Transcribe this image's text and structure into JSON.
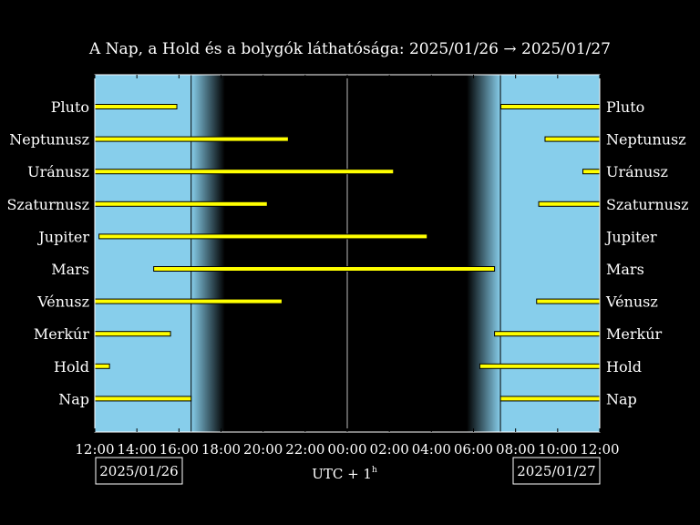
{
  "chart_data": {
    "type": "bar",
    "title": "A Nap, a Hold és a bolygók láthatósága: 2025/01/26 → 2025/01/27",
    "xlabel": "UTC + 1",
    "xlabel_sup": "h",
    "date_left": "2025/01/26",
    "date_right": "2025/01/27",
    "x_range_hours": [
      12,
      36
    ],
    "x_ticks": [
      {
        "h": 12,
        "label": "12:00"
      },
      {
        "h": 14,
        "label": "14:00"
      },
      {
        "h": 16,
        "label": "16:00"
      },
      {
        "h": 18,
        "label": "18:00"
      },
      {
        "h": 20,
        "label": "20:00"
      },
      {
        "h": 22,
        "label": "22:00"
      },
      {
        "h": 24,
        "label": "00:00"
      },
      {
        "h": 26,
        "label": "02:00"
      },
      {
        "h": 28,
        "label": "04:00"
      },
      {
        "h": 30,
        "label": "06:00"
      },
      {
        "h": 32,
        "label": "08:00"
      },
      {
        "h": 34,
        "label": "10:00"
      },
      {
        "h": 36,
        "label": "12:00"
      }
    ],
    "sunset_hour": 16.58,
    "sunrise_hour": 31.28,
    "twilight_hours": 1.6,
    "midnight_hour": 24,
    "colors": {
      "day": "#87ceeb",
      "night": "#000000",
      "bar": "#ffff00",
      "frame": "#ffffff"
    },
    "categories": [
      "Pluto",
      "Neptunusz",
      "Uránusz",
      "Szaturnusz",
      "Jupiter",
      "Mars",
      "Vénusz",
      "Merkúr",
      "Hold",
      "Nap"
    ],
    "visibility": [
      {
        "name": "Pluto",
        "intervals": [
          [
            12.0,
            15.9
          ],
          [
            31.3,
            36.0
          ]
        ]
      },
      {
        "name": "Neptunusz",
        "intervals": [
          [
            12.0,
            21.2
          ],
          [
            33.4,
            36.0
          ]
        ]
      },
      {
        "name": "Uránusz",
        "intervals": [
          [
            12.0,
            26.2
          ],
          [
            35.2,
            36.0
          ]
        ]
      },
      {
        "name": "Szaturnusz",
        "intervals": [
          [
            12.0,
            20.2
          ],
          [
            33.1,
            36.0
          ]
        ]
      },
      {
        "name": "Jupiter",
        "intervals": [
          [
            12.2,
            27.8
          ]
        ]
      },
      {
        "name": "Mars",
        "intervals": [
          [
            14.8,
            31.0
          ]
        ]
      },
      {
        "name": "Vénusz",
        "intervals": [
          [
            12.0,
            20.9
          ],
          [
            33.0,
            36.0
          ]
        ]
      },
      {
        "name": "Merkúr",
        "intervals": [
          [
            12.0,
            15.6
          ],
          [
            31.0,
            36.0
          ]
        ]
      },
      {
        "name": "Hold",
        "intervals": [
          [
            12.0,
            12.7
          ],
          [
            30.3,
            36.0
          ]
        ]
      },
      {
        "name": "Nap",
        "intervals": [
          [
            12.0,
            16.58
          ],
          [
            31.28,
            36.0
          ]
        ]
      }
    ]
  }
}
